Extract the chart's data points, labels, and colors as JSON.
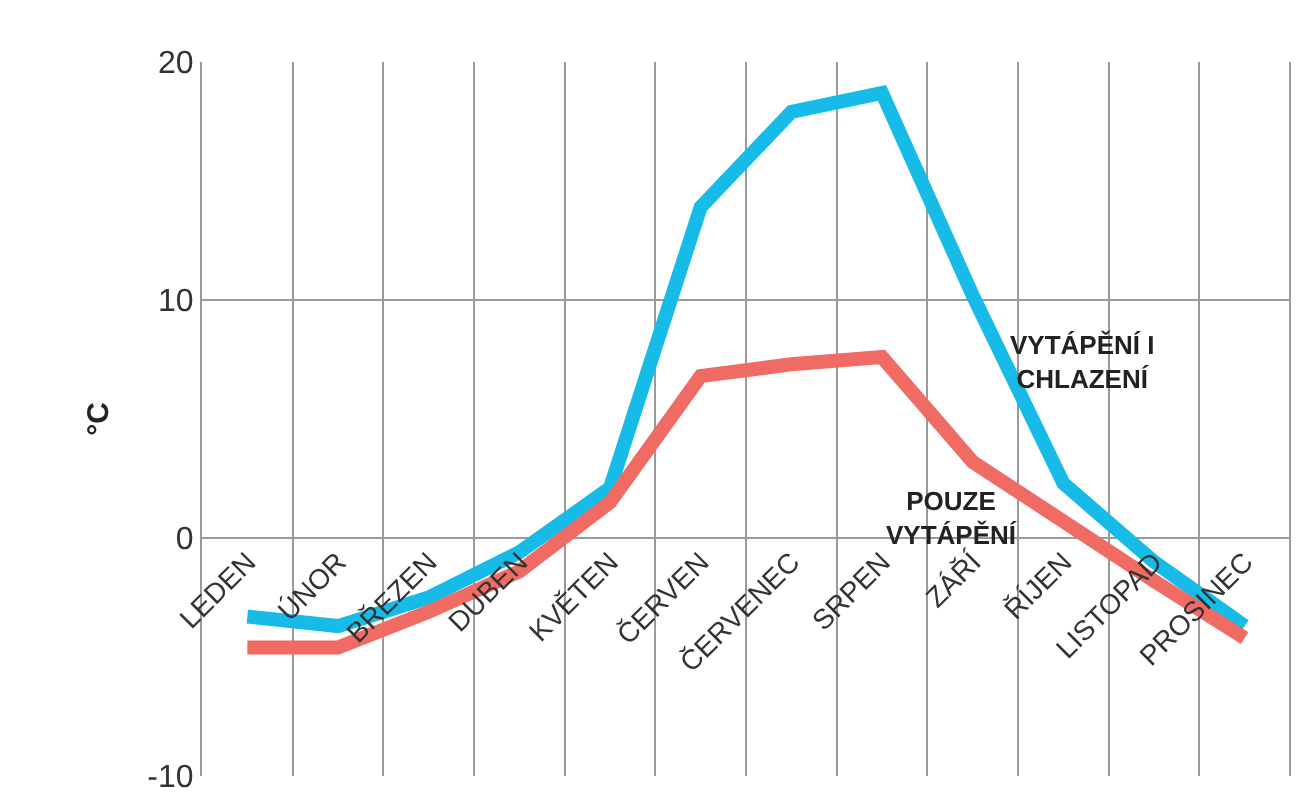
{
  "chart_data": {
    "type": "line",
    "ylabel": "°C",
    "categories": [
      "LEDEN",
      "ÚNOR",
      "BŘEZEN",
      "DUBEN",
      "KVĚTEN",
      "ČERVEN",
      "ČERVENEC",
      "SRPEN",
      "ZÁŘÍ",
      "ŘÍJEN",
      "LISTOPAD",
      "PROSINEC"
    ],
    "series": [
      {
        "name": "VYTÁPĚNÍ I CHLAZENÍ",
        "color": "#16bbe8",
        "values": [
          -3.3,
          -3.7,
          -2.5,
          -0.6,
          2.1,
          13.9,
          17.9,
          18.7,
          10.2,
          2.3,
          -1.0,
          -3.7
        ]
      },
      {
        "name": "POUZE VYTÁPĚNÍ",
        "color": "#ef6b63",
        "values": [
          -4.6,
          -4.6,
          -3.1,
          -1.4,
          1.5,
          6.8,
          7.3,
          7.6,
          3.2,
          0.7,
          -1.8,
          -4.2
        ]
      }
    ],
    "ylim": [
      -10,
      20
    ],
    "yticks": [
      -10,
      0,
      10,
      20
    ],
    "grid": true,
    "legend": false,
    "marker": "none",
    "line_style": "solid"
  }
}
